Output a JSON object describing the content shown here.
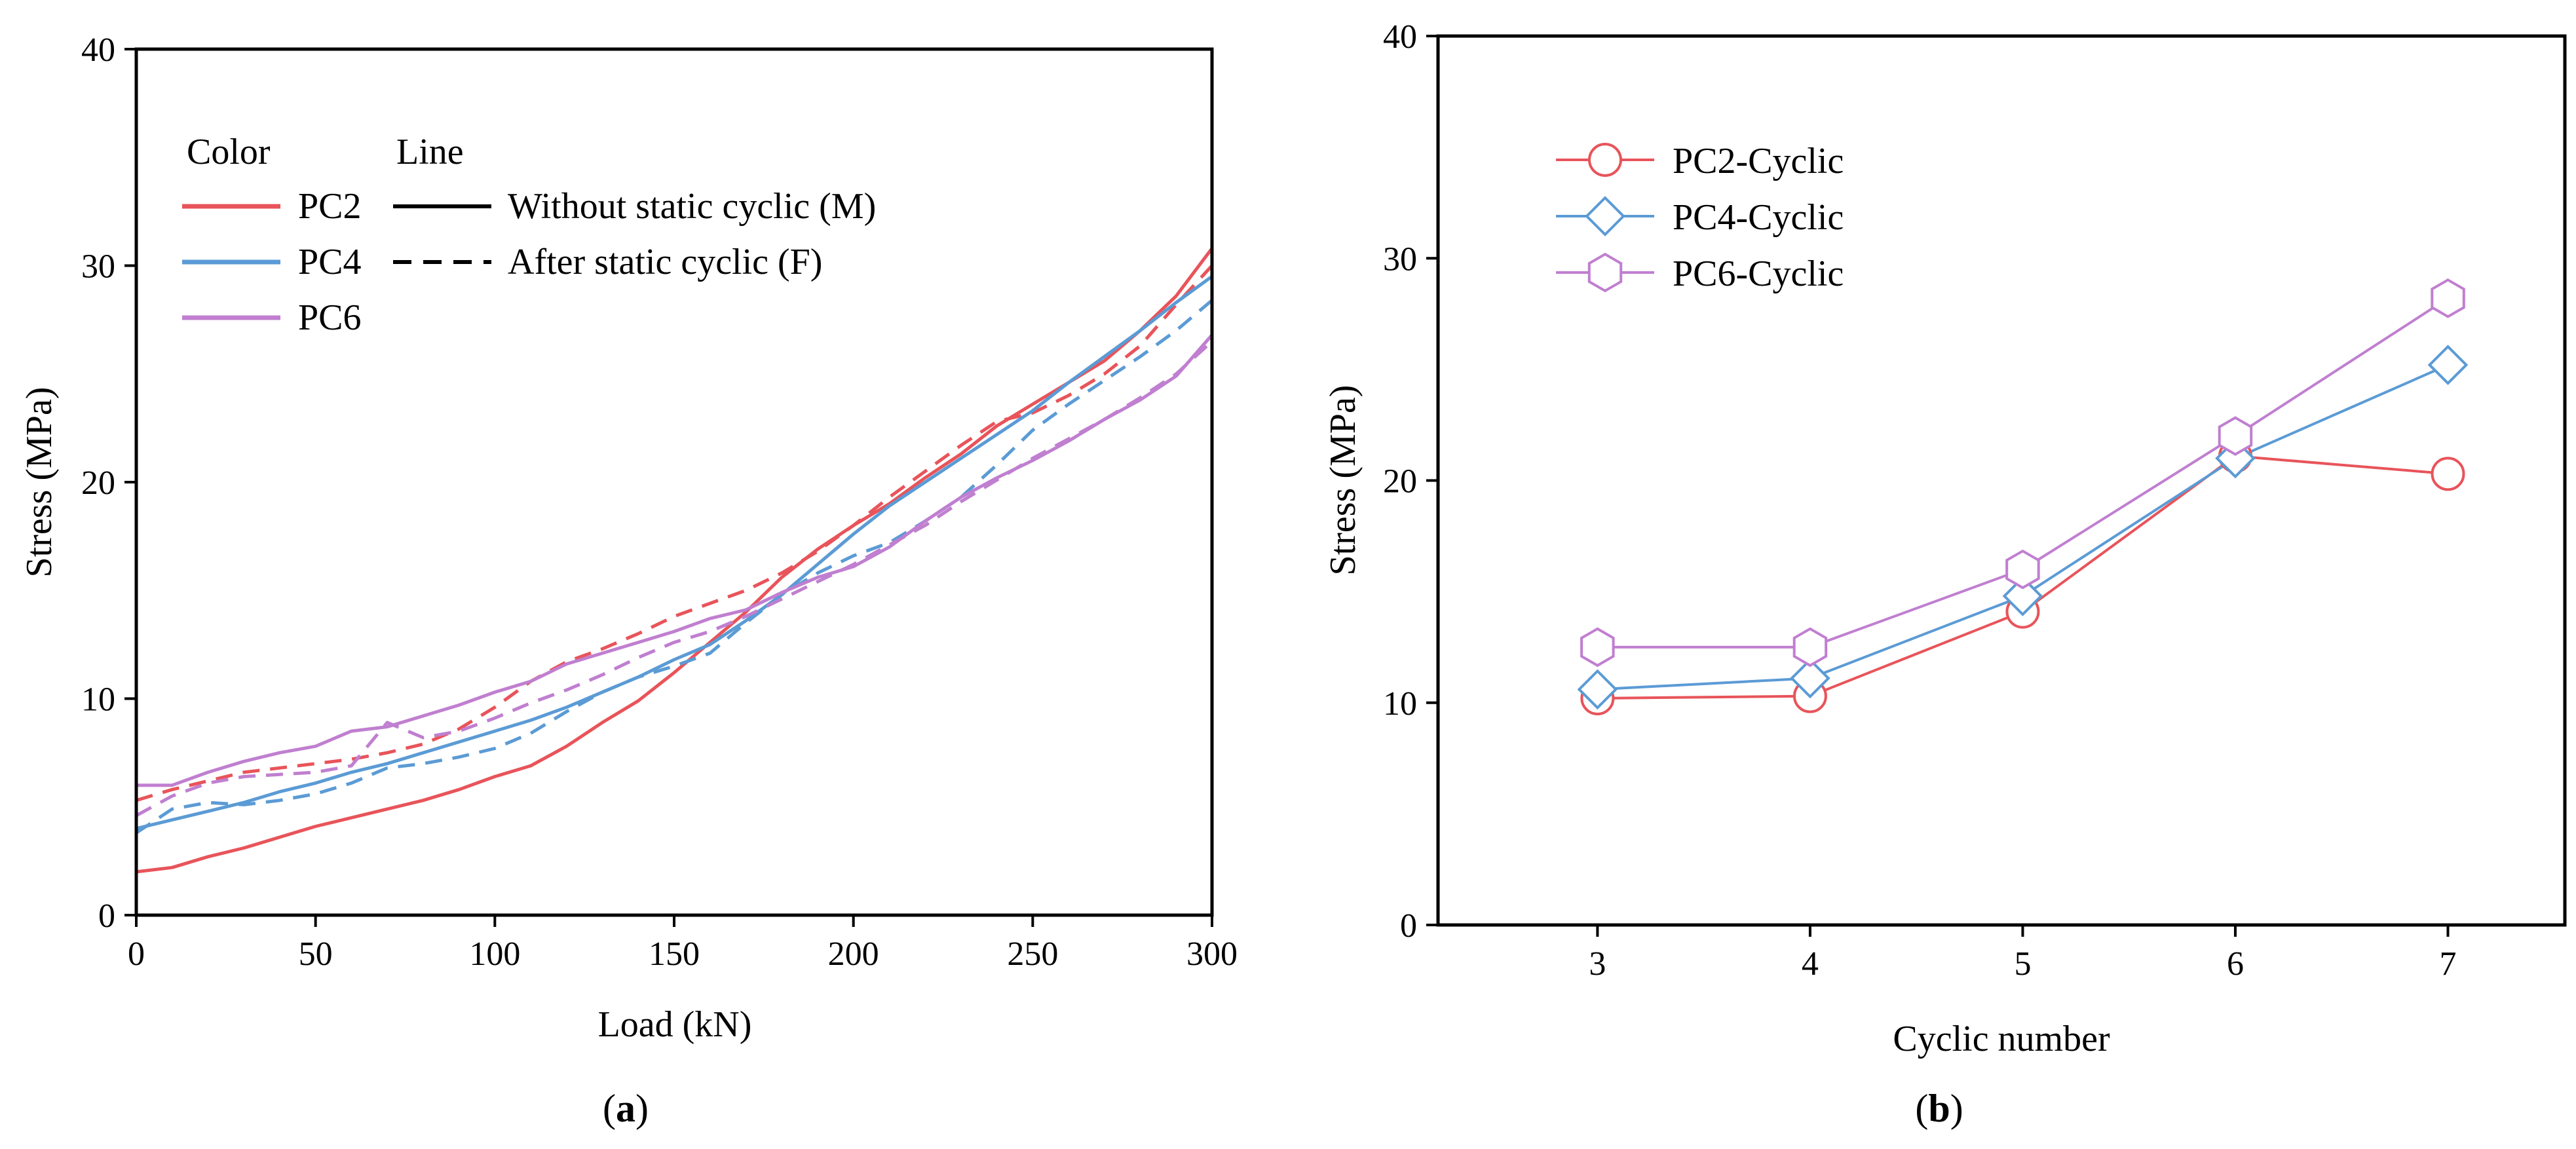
{
  "colors": {
    "pc2": "#e8545a",
    "pc4": "#5b9bd5",
    "pc6": "#c07fd0",
    "axis": "#000000"
  },
  "chart_data": [
    {
      "type": "line",
      "panel_label": "a",
      "xlabel": "Load (kN)",
      "ylabel": "Stress (MPa)",
      "xlim": [
        0,
        300
      ],
      "ylim": [
        0,
        40
      ],
      "xticks": [
        "0",
        "50",
        "100",
        "150",
        "200",
        "250",
        "300"
      ],
      "yticks": [
        "0",
        "10",
        "20",
        "30",
        "40"
      ],
      "legend": {
        "color_header": "Color",
        "line_header": "Line",
        "color_entries": [
          "PC2",
          "PC4",
          "PC6"
        ],
        "line_entries": [
          "Without static cyclic (M)",
          "After static cyclic (F)"
        ]
      },
      "series": [
        {
          "name": "PC2 (M)",
          "color_key": "pc2",
          "dash": false,
          "x": [
            0,
            10,
            20,
            30,
            40,
            50,
            60,
            70,
            80,
            90,
            100,
            110,
            120,
            130,
            140,
            150,
            160,
            170,
            180,
            190,
            200,
            210,
            220,
            230,
            240,
            250,
            260,
            270,
            280,
            290,
            300
          ],
          "y": [
            2.0,
            2.2,
            2.7,
            3.1,
            3.6,
            4.1,
            4.5,
            4.9,
            5.3,
            5.8,
            6.4,
            6.9,
            7.8,
            8.9,
            9.9,
            11.2,
            12.6,
            14.0,
            15.6,
            16.9,
            18.0,
            19.0,
            20.2,
            21.3,
            22.6,
            23.6,
            24.6,
            25.6,
            27.0,
            28.6,
            30.8
          ]
        },
        {
          "name": "PC2 (F)",
          "color_key": "pc2",
          "dash": true,
          "x": [
            0,
            10,
            20,
            30,
            40,
            50,
            60,
            70,
            80,
            90,
            100,
            110,
            120,
            130,
            140,
            150,
            160,
            170,
            180,
            190,
            200,
            210,
            220,
            230,
            240,
            250,
            260,
            270,
            280,
            290,
            300
          ],
          "y": [
            5.3,
            5.8,
            6.2,
            6.6,
            6.8,
            7.0,
            7.2,
            7.5,
            7.9,
            8.6,
            9.6,
            10.8,
            11.7,
            12.3,
            13.0,
            13.8,
            14.4,
            15.0,
            15.8,
            16.8,
            18.0,
            19.3,
            20.5,
            21.7,
            22.8,
            23.2,
            24.0,
            25.0,
            26.3,
            28.2,
            30.0
          ]
        },
        {
          "name": "PC4 (M)",
          "color_key": "pc4",
          "dash": false,
          "x": [
            0,
            10,
            20,
            30,
            40,
            50,
            60,
            70,
            80,
            90,
            100,
            110,
            120,
            130,
            140,
            150,
            160,
            170,
            180,
            190,
            200,
            210,
            220,
            230,
            240,
            250,
            260,
            270,
            280,
            290,
            300
          ],
          "y": [
            4.0,
            4.4,
            4.8,
            5.2,
            5.7,
            6.1,
            6.6,
            7.0,
            7.5,
            8.0,
            8.5,
            9.0,
            9.6,
            10.3,
            11.0,
            11.8,
            12.5,
            13.6,
            14.8,
            16.2,
            17.6,
            18.9,
            20.0,
            21.1,
            22.2,
            23.3,
            24.6,
            25.8,
            27.0,
            28.3,
            29.5
          ]
        },
        {
          "name": "PC4 (F)",
          "color_key": "pc4",
          "dash": true,
          "x": [
            0,
            10,
            20,
            30,
            40,
            50,
            60,
            70,
            80,
            90,
            100,
            110,
            120,
            130,
            140,
            150,
            160,
            170,
            180,
            190,
            200,
            210,
            220,
            230,
            240,
            250,
            260,
            270,
            280,
            290,
            300
          ],
          "y": [
            3.8,
            4.9,
            5.2,
            5.1,
            5.3,
            5.6,
            6.1,
            6.8,
            7.0,
            7.3,
            7.7,
            8.4,
            9.4,
            10.3,
            11.0,
            11.5,
            12.1,
            13.5,
            14.8,
            15.8,
            16.6,
            17.2,
            18.2,
            19.3,
            20.8,
            22.4,
            23.6,
            24.7,
            25.8,
            27.0,
            28.4
          ]
        },
        {
          "name": "PC6 (M)",
          "color_key": "pc6",
          "dash": false,
          "x": [
            0,
            10,
            20,
            30,
            40,
            50,
            60,
            70,
            80,
            90,
            100,
            110,
            120,
            130,
            140,
            150,
            160,
            170,
            180,
            190,
            200,
            210,
            220,
            230,
            240,
            250,
            260,
            270,
            280,
            290,
            300
          ],
          "y": [
            6.0,
            6.0,
            6.6,
            7.1,
            7.5,
            7.8,
            8.5,
            8.7,
            9.2,
            9.7,
            10.3,
            10.8,
            11.6,
            12.1,
            12.6,
            13.1,
            13.7,
            14.1,
            14.9,
            15.6,
            16.1,
            17.0,
            18.2,
            19.3,
            20.2,
            21.0,
            21.9,
            22.9,
            23.8,
            24.9,
            26.8
          ]
        },
        {
          "name": "PC6 (F)",
          "color_key": "pc6",
          "dash": true,
          "x": [
            0,
            10,
            20,
            30,
            40,
            50,
            60,
            70,
            80,
            90,
            100,
            110,
            120,
            130,
            140,
            150,
            160,
            170,
            180,
            190,
            200,
            210,
            220,
            230,
            240,
            250,
            260,
            270,
            280,
            290,
            300
          ],
          "y": [
            4.6,
            5.5,
            6.1,
            6.4,
            6.5,
            6.6,
            6.9,
            8.9,
            8.2,
            8.5,
            9.1,
            9.8,
            10.4,
            11.1,
            11.9,
            12.6,
            13.1,
            13.8,
            14.6,
            15.4,
            16.2,
            17.1,
            18.0,
            19.1,
            20.1,
            21.1,
            22.0,
            22.9,
            23.9,
            25.0,
            26.5
          ]
        }
      ]
    },
    {
      "type": "line",
      "panel_label": "b",
      "xlabel": "Cyclic number",
      "ylabel": "Stress (MPa)",
      "xlim": [
        2.25,
        7.55
      ],
      "ylim": [
        0,
        40
      ],
      "xticks": [
        "3",
        "4",
        "5",
        "6",
        "7"
      ],
      "yticks": [
        "0",
        "10",
        "20",
        "30",
        "40"
      ],
      "categories": [
        3,
        4,
        5,
        6,
        7
      ],
      "series": [
        {
          "name": "PC2-Cyclic",
          "color_key": "pc2",
          "marker": "circle",
          "values": [
            10.2,
            10.3,
            14.1,
            21.1,
            20.3
          ]
        },
        {
          "name": "PC4-Cyclic",
          "color_key": "pc4",
          "marker": "diamond",
          "values": [
            10.6,
            11.1,
            14.8,
            21.0,
            25.2
          ]
        },
        {
          "name": "PC6-Cyclic",
          "color_key": "pc6",
          "marker": "hexagon",
          "values": [
            12.5,
            12.5,
            16.0,
            22.0,
            28.2
          ]
        }
      ]
    }
  ]
}
